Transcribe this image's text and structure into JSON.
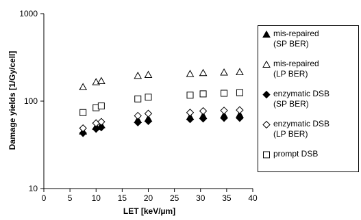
{
  "chart_data": {
    "type": "scatter",
    "title": "",
    "xlabel": "LET [keV/µm]",
    "ylabel": "Damage yields [1/Gy/cell]",
    "xlim": [
      0,
      40
    ],
    "ylim": [
      10,
      1000
    ],
    "yscale": "log",
    "x_ticks": [
      "0",
      "5",
      "10",
      "15",
      "20",
      "25",
      "30",
      "35",
      "40"
    ],
    "y_ticks": [
      "10",
      "100",
      "1000"
    ],
    "grid": false,
    "legend_position": "right",
    "series": [
      {
        "name": "mis-repaired\n(SP BER)",
        "marker": "filled-triangle",
        "color": "#000000",
        "points": [
          [
            7.5,
            45
          ],
          [
            10,
            51
          ],
          [
            11,
            53
          ],
          [
            18,
            61
          ],
          [
            20,
            63
          ],
          [
            28,
            66
          ],
          [
            30.5,
            68
          ],
          [
            34.5,
            69
          ],
          [
            37.5,
            70
          ]
        ]
      },
      {
        "name": "mis-repaired\n(LP BER)",
        "marker": "open-triangle",
        "color": "#000000",
        "points": [
          [
            7.5,
            145
          ],
          [
            10,
            165
          ],
          [
            11,
            170
          ],
          [
            18,
            195
          ],
          [
            20,
            200
          ],
          [
            28,
            205
          ],
          [
            30.5,
            210
          ],
          [
            34.5,
            213
          ],
          [
            37.5,
            215
          ]
        ]
      },
      {
        "name": "enzymatic DSB\n(SP BER)",
        "marker": "filled-diamond",
        "color": "#000000",
        "points": [
          [
            7.5,
            43
          ],
          [
            10,
            48
          ],
          [
            11,
            50
          ],
          [
            18,
            57
          ],
          [
            20,
            59
          ],
          [
            28,
            62
          ],
          [
            30.5,
            63
          ],
          [
            34.5,
            64
          ],
          [
            37.5,
            64
          ]
        ]
      },
      {
        "name": "enzymatic DSB\n(LP BER)",
        "marker": "open-diamond",
        "color": "#000000",
        "points": [
          [
            7.5,
            49
          ],
          [
            10,
            56
          ],
          [
            11,
            58
          ],
          [
            18,
            68
          ],
          [
            20,
            72
          ],
          [
            28,
            74
          ],
          [
            30.5,
            77
          ],
          [
            34.5,
            78
          ],
          [
            37.5,
            79
          ]
        ]
      },
      {
        "name": "prompt DSB",
        "marker": "open-square",
        "color": "#000000",
        "points": [
          [
            7.5,
            74
          ],
          [
            10,
            84
          ],
          [
            11,
            88
          ],
          [
            18,
            106
          ],
          [
            20,
            111
          ],
          [
            28,
            117
          ],
          [
            30.5,
            121
          ],
          [
            34.5,
            123
          ],
          [
            37.5,
            125
          ]
        ]
      }
    ]
  }
}
